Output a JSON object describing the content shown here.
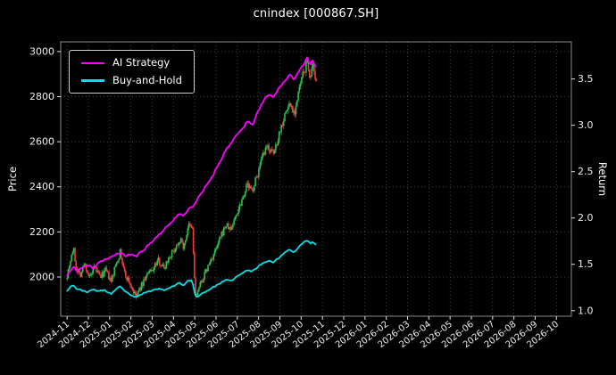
{
  "title": "cnindex [000867.SH]",
  "chart_data": {
    "type": "candlestick+line",
    "title": "cnindex [000867.SH]",
    "ylabel_left": "Price",
    "ylabel_right": "Return",
    "grid": true,
    "legend_position": "upper-left",
    "x_tick_labels": [
      "2024-11",
      "2024-12",
      "2025-01",
      "2025-02",
      "2025-03",
      "2025-04",
      "2025-05",
      "2025-06",
      "2025-07",
      "2025-08",
      "2025-09",
      "2025-10",
      "2025-11",
      "2025-12",
      "2026-01",
      "2026-02",
      "2026-03",
      "2026-04",
      "2026-05",
      "2026-06",
      "2026-07",
      "2026-08",
      "2026-09",
      "2026-10"
    ],
    "y_left_ticks": [
      2000,
      2200,
      2400,
      2600,
      2800,
      3000
    ],
    "y_right_ticks": [
      1.0,
      1.5,
      2.0,
      2.5,
      3.0,
      3.5
    ],
    "y_left_range": [
      1826,
      3043
    ],
    "y_right_range": [
      0.94,
      3.9
    ],
    "x_range_months": [
      -0.3,
      23.7
    ],
    "colors": {
      "bg": "#000000",
      "text": "#ffffff",
      "grid": "#585858",
      "frame": "#8a8a8a",
      "up": "#2fbf4f",
      "down": "#f23c3c",
      "ai": "#ff00ff",
      "bh": "#00e0e6"
    },
    "series": [
      {
        "name": "AI Strategy",
        "axis": "right",
        "color": "#ff00ff",
        "jitter": 0.013,
        "seed": 11,
        "keypoints": [
          [
            "2024-11-01",
            1.38
          ],
          [
            "2024-11-06",
            1.43
          ],
          [
            "2024-11-10",
            1.47
          ],
          [
            "2024-11-15",
            1.43
          ],
          [
            "2024-11-22",
            1.46
          ],
          [
            "2024-12-01",
            1.49
          ],
          [
            "2024-12-08",
            1.46
          ],
          [
            "2024-12-15",
            1.52
          ],
          [
            "2024-12-24",
            1.55
          ],
          [
            "2025-01-03",
            1.57
          ],
          [
            "2025-01-10",
            1.61
          ],
          [
            "2025-01-16",
            1.63
          ],
          [
            "2025-01-22",
            1.59
          ],
          [
            "2025-02-01",
            1.61
          ],
          [
            "2025-02-08",
            1.58
          ],
          [
            "2025-02-15",
            1.63
          ],
          [
            "2025-02-22",
            1.68
          ],
          [
            "2025-03-03",
            1.76
          ],
          [
            "2025-03-10",
            1.82
          ],
          [
            "2025-03-18",
            1.87
          ],
          [
            "2025-03-25",
            1.93
          ],
          [
            "2025-04-02",
            1.99
          ],
          [
            "2025-04-10",
            2.05
          ],
          [
            "2025-04-16",
            2.02
          ],
          [
            "2025-04-22",
            2.1
          ],
          [
            "2025-04-28",
            2.12
          ],
          [
            "2025-05-05",
            2.2
          ],
          [
            "2025-05-12",
            2.28
          ],
          [
            "2025-05-20",
            2.38
          ],
          [
            "2025-05-27",
            2.46
          ],
          [
            "2025-06-03",
            2.56
          ],
          [
            "2025-06-10",
            2.66
          ],
          [
            "2025-06-17",
            2.76
          ],
          [
            "2025-06-24",
            2.82
          ],
          [
            "2025-07-01",
            2.9
          ],
          [
            "2025-07-08",
            2.96
          ],
          [
            "2025-07-15",
            3.04
          ],
          [
            "2025-07-22",
            3.0
          ],
          [
            "2025-08-01",
            3.16
          ],
          [
            "2025-08-08",
            3.26
          ],
          [
            "2025-08-15",
            3.34
          ],
          [
            "2025-08-22",
            3.3
          ],
          [
            "2025-09-01",
            3.42
          ],
          [
            "2025-09-08",
            3.48
          ],
          [
            "2025-09-15",
            3.54
          ],
          [
            "2025-09-22",
            3.5
          ],
          [
            "2025-10-01",
            3.62
          ],
          [
            "2025-10-06",
            3.68
          ],
          [
            "2025-10-10",
            3.74
          ],
          [
            "2025-10-14",
            3.64
          ],
          [
            "2025-10-18",
            3.74
          ],
          [
            "2025-10-21",
            3.6
          ],
          [
            "2025-10-24",
            3.68
          ]
        ]
      },
      {
        "name": "Buy-and-Hold",
        "axis": "right",
        "color": "#00e0e6",
        "jitter": 0.007,
        "seed": 23,
        "keypoints": [
          [
            "2024-11-01",
            1.22
          ],
          [
            "2024-11-06",
            1.26
          ],
          [
            "2024-11-10",
            1.28
          ],
          [
            "2024-11-15",
            1.23
          ],
          [
            "2024-11-22",
            1.22
          ],
          [
            "2024-12-01",
            1.2
          ],
          [
            "2024-12-08",
            1.23
          ],
          [
            "2024-12-15",
            1.21
          ],
          [
            "2024-12-24",
            1.22
          ],
          [
            "2025-01-03",
            1.18
          ],
          [
            "2025-01-10",
            1.23
          ],
          [
            "2025-01-16",
            1.26
          ],
          [
            "2025-01-22",
            1.21
          ],
          [
            "2025-02-01",
            1.17
          ],
          [
            "2025-02-08",
            1.14
          ],
          [
            "2025-02-15",
            1.17
          ],
          [
            "2025-02-22",
            1.2
          ],
          [
            "2025-03-03",
            1.22
          ],
          [
            "2025-03-10",
            1.24
          ],
          [
            "2025-03-18",
            1.22
          ],
          [
            "2025-03-25",
            1.25
          ],
          [
            "2025-04-02",
            1.27
          ],
          [
            "2025-04-10",
            1.3
          ],
          [
            "2025-04-16",
            1.27
          ],
          [
            "2025-04-22",
            1.33
          ],
          [
            "2025-04-28",
            1.32
          ],
          [
            "2025-05-02",
            1.14
          ],
          [
            "2025-05-08",
            1.17
          ],
          [
            "2025-05-15",
            1.2
          ],
          [
            "2025-05-22",
            1.23
          ],
          [
            "2025-06-01",
            1.27
          ],
          [
            "2025-06-08",
            1.3
          ],
          [
            "2025-06-15",
            1.33
          ],
          [
            "2025-06-22",
            1.32
          ],
          [
            "2025-07-01",
            1.37
          ],
          [
            "2025-07-08",
            1.4
          ],
          [
            "2025-07-15",
            1.44
          ],
          [
            "2025-07-22",
            1.42
          ],
          [
            "2025-08-01",
            1.48
          ],
          [
            "2025-08-08",
            1.52
          ],
          [
            "2025-08-15",
            1.54
          ],
          [
            "2025-08-22",
            1.52
          ],
          [
            "2025-09-01",
            1.58
          ],
          [
            "2025-09-08",
            1.63
          ],
          [
            "2025-09-15",
            1.66
          ],
          [
            "2025-09-22",
            1.63
          ],
          [
            "2025-10-01",
            1.72
          ],
          [
            "2025-10-06",
            1.74
          ],
          [
            "2025-10-10",
            1.76
          ],
          [
            "2025-10-14",
            1.72
          ],
          [
            "2025-10-18",
            1.75
          ],
          [
            "2025-10-21",
            1.71
          ],
          [
            "2025-10-24",
            1.73
          ]
        ]
      }
    ],
    "candles": {
      "axis": "left",
      "noise": {
        "seed": 7,
        "step_months": 0.053,
        "close_jitter_pct": 0.007,
        "wick_pct": 0.006
      },
      "close_keypoints": [
        [
          "2024-11-01",
          2010
        ],
        [
          "2024-11-06",
          2080
        ],
        [
          "2024-11-10",
          2130
        ],
        [
          "2024-11-14",
          2040
        ],
        [
          "2024-11-20",
          2010
        ],
        [
          "2024-11-26",
          2060
        ],
        [
          "2024-12-03",
          1995
        ],
        [
          "2024-12-10",
          2040
        ],
        [
          "2024-12-18",
          2000
        ],
        [
          "2024-12-26",
          2030
        ],
        [
          "2025-01-03",
          1975
        ],
        [
          "2025-01-10",
          2060
        ],
        [
          "2025-01-16",
          2110
        ],
        [
          "2025-01-22",
          2020
        ],
        [
          "2025-02-01",
          1960
        ],
        [
          "2025-02-08",
          1910
        ],
        [
          "2025-02-15",
          1955
        ],
        [
          "2025-02-22",
          2000
        ],
        [
          "2025-03-03",
          2040
        ],
        [
          "2025-03-10",
          2075
        ],
        [
          "2025-03-18",
          2040
        ],
        [
          "2025-03-25",
          2090
        ],
        [
          "2025-04-02",
          2120
        ],
        [
          "2025-04-10",
          2170
        ],
        [
          "2025-04-16",
          2130
        ],
        [
          "2025-04-22",
          2230
        ],
        [
          "2025-04-28",
          2210
        ],
        [
          "2025-05-02",
          1905
        ],
        [
          "2025-05-08",
          1960
        ],
        [
          "2025-05-15",
          2010
        ],
        [
          "2025-05-22",
          2060
        ],
        [
          "2025-06-01",
          2120
        ],
        [
          "2025-06-08",
          2180
        ],
        [
          "2025-06-15",
          2230
        ],
        [
          "2025-06-22",
          2210
        ],
        [
          "2025-07-01",
          2290
        ],
        [
          "2025-07-08",
          2350
        ],
        [
          "2025-07-15",
          2410
        ],
        [
          "2025-07-22",
          2380
        ],
        [
          "2025-08-01",
          2470
        ],
        [
          "2025-08-08",
          2540
        ],
        [
          "2025-08-15",
          2580
        ],
        [
          "2025-08-22",
          2540
        ],
        [
          "2025-09-01",
          2650
        ],
        [
          "2025-09-08",
          2720
        ],
        [
          "2025-09-15",
          2770
        ],
        [
          "2025-09-22",
          2730
        ],
        [
          "2025-10-01",
          2870
        ],
        [
          "2025-10-06",
          2920
        ],
        [
          "2025-10-10",
          2950
        ],
        [
          "2025-10-14",
          2880
        ],
        [
          "2025-10-18",
          2930
        ],
        [
          "2025-10-21",
          2860
        ],
        [
          "2025-10-24",
          2900
        ]
      ]
    }
  }
}
